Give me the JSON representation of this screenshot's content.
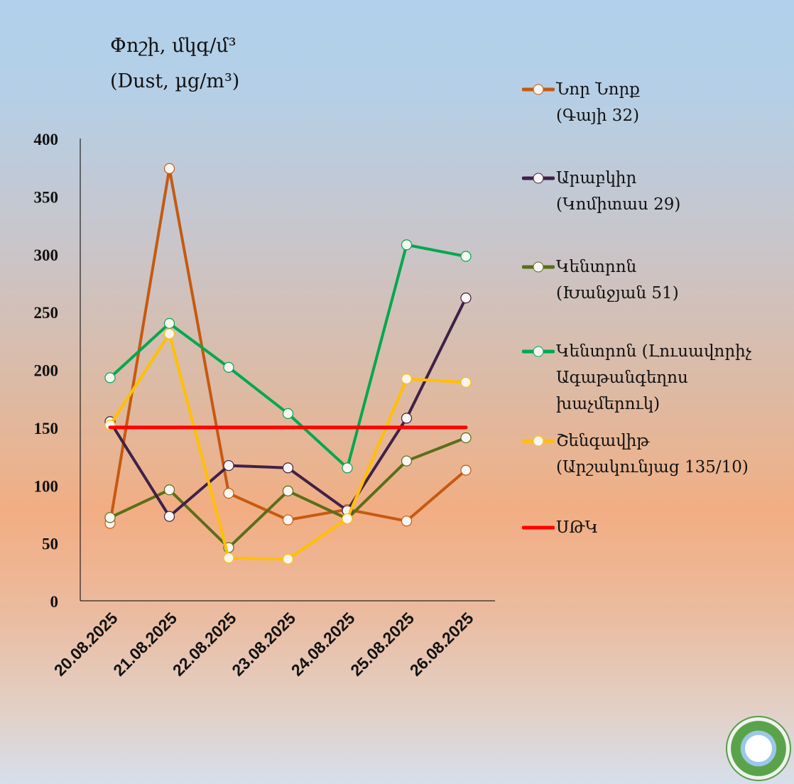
{
  "chart_data": {
    "type": "line",
    "title": "Փոշի, մկգ/մ³",
    "subtitle": "(Dust, µg/m³)",
    "xlabel": "",
    "ylabel": "",
    "ylim": [
      0,
      400
    ],
    "yticks": [
      "0",
      "50",
      "100",
      "150",
      "200",
      "250",
      "300",
      "350",
      "400"
    ],
    "categories": [
      "20.08.2025",
      "21.08.2025",
      "22.08.2025",
      "23.08.2025",
      "24.08.2025",
      "25.08.2025",
      "26.08.2025"
    ],
    "grid": false,
    "legend_position": "right",
    "series": [
      {
        "name": "Նոր Նորք\n(Գայի 32)",
        "color": "#c55a11",
        "values": [
          67,
          374,
          93,
          70,
          79,
          69,
          113
        ]
      },
      {
        "name": "Արաբկիր\n(Կոմիտաս 29)",
        "color": "#3f2147",
        "values": [
          155,
          73,
          117,
          115,
          78,
          158,
          262
        ]
      },
      {
        "name": "Կենտրոն\n(Խանջյան 51)",
        "color": "#5a6e1a",
        "values": [
          72,
          96,
          46,
          95,
          71,
          121,
          141
        ]
      },
      {
        "name": "Կենտրոն (Լուսավորիչ\nԱգաթանգեղոս\nխաչմերուկ)",
        "color": "#00a84f",
        "values": [
          193,
          240,
          202,
          162,
          115,
          308,
          298
        ]
      },
      {
        "name": "Շենգավիթ\n(Արշակունյաց 135/10)",
        "color": "#ffc000",
        "values": [
          152,
          231,
          37,
          36,
          71,
          192,
          189
        ]
      },
      {
        "name": "ՍԹԿ",
        "color": "#ff0000",
        "values": [
          150,
          150,
          150,
          150,
          150,
          150,
          150
        ],
        "markers": false
      }
    ]
  }
}
